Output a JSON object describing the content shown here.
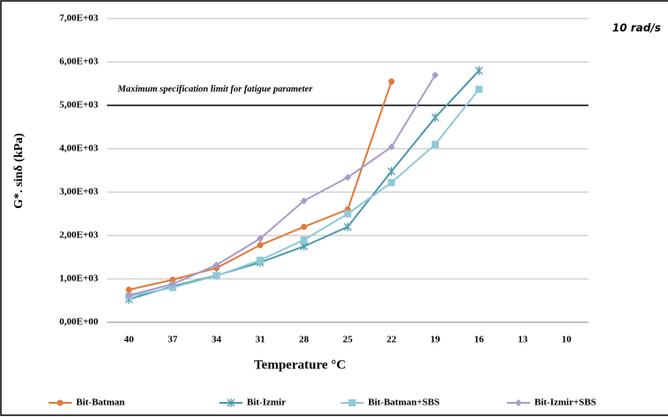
{
  "chart_data": {
    "type": "line",
    "categories": [
      "40",
      "37",
      "34",
      "31",
      "28",
      "25",
      "22",
      "19",
      "16",
      "13",
      "10"
    ],
    "series": [
      {
        "name": "Bit-Batman",
        "color": "#e07b39",
        "marker": "circle",
        "values": [
          750,
          980,
          1250,
          1780,
          2200,
          2600,
          5550,
          null,
          null,
          null,
          null
        ]
      },
      {
        "name": "Bit-Izmir",
        "color": "#4a9aad",
        "marker": "star",
        "values": [
          530,
          830,
          1080,
          1380,
          1750,
          2200,
          3480,
          4720,
          5800,
          null,
          null
        ]
      },
      {
        "name": "Bit-Batman+SBS",
        "color": "#8fc9d9",
        "marker": "square",
        "values": [
          600,
          800,
          1070,
          1430,
          1900,
          2500,
          3220,
          4100,
          5370,
          null,
          null
        ]
      },
      {
        "name": "Bit-Izmir+SBS",
        "color": "#a99cc8",
        "marker": "diamond",
        "values": [
          620,
          880,
          1320,
          1930,
          2800,
          3340,
          4040,
          5700,
          null,
          null,
          null
        ]
      }
    ],
    "ylim": [
      0,
      7000
    ],
    "yticks": [
      {
        "value": 0,
        "label": "0,00E+00"
      },
      {
        "value": 1000,
        "label": "1,00E+03"
      },
      {
        "value": 2000,
        "label": "2,00E+03"
      },
      {
        "value": 3000,
        "label": "3,00E+03"
      },
      {
        "value": 4000,
        "label": "4,00E+03"
      },
      {
        "value": 5000,
        "label": "5,00E+03"
      },
      {
        "value": 6000,
        "label": "6,00E+03"
      },
      {
        "value": 7000,
        "label": "7,00E+03"
      }
    ],
    "grid": true,
    "x_label": "Temperature °C",
    "y_label": "G*. sinδ (kPa)",
    "annotation": "10 rad/s",
    "limit": {
      "value": 5000,
      "label": "Maximum specification limit for fatigue parameter"
    },
    "legend": "bottom"
  }
}
